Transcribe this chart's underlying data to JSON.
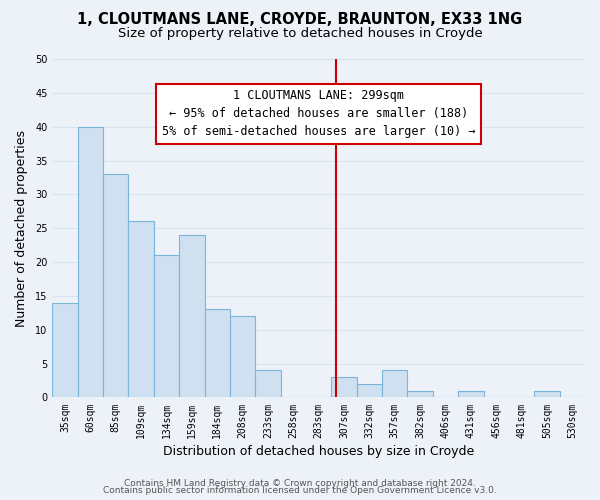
{
  "title1": "1, CLOUTMANS LANE, CROYDE, BRAUNTON, EX33 1NG",
  "title2": "Size of property relative to detached houses in Croyde",
  "xlabel": "Distribution of detached houses by size in Croyde",
  "ylabel": "Number of detached properties",
  "bar_color": "#cfe0f0",
  "bar_edge_color": "#7ab4d8",
  "categories": [
    "35sqm",
    "60sqm",
    "85sqm",
    "109sqm",
    "134sqm",
    "159sqm",
    "184sqm",
    "208sqm",
    "233sqm",
    "258sqm",
    "283sqm",
    "307sqm",
    "332sqm",
    "357sqm",
    "382sqm",
    "406sqm",
    "431sqm",
    "456sqm",
    "481sqm",
    "505sqm",
    "530sqm"
  ],
  "values": [
    14,
    40,
    33,
    26,
    21,
    24,
    13,
    12,
    4,
    0,
    0,
    3,
    2,
    4,
    1,
    0,
    1,
    0,
    0,
    1,
    0
  ],
  "ylim": [
    0,
    50
  ],
  "yticks": [
    0,
    5,
    10,
    15,
    20,
    25,
    30,
    35,
    40,
    45,
    50
  ],
  "vline_color": "#cc0000",
  "annotation_title": "1 CLOUTMANS LANE: 299sqm",
  "annotation_line1": "← 95% of detached houses are smaller (188)",
  "annotation_line2": "5% of semi-detached houses are larger (10) →",
  "footer1": "Contains HM Land Registry data © Crown copyright and database right 2024.",
  "footer2": "Contains public sector information licensed under the Open Government Licence v3.0.",
  "background_color": "#edf2f9",
  "grid_color": "#d8e4f0",
  "title_fontsize": 10.5,
  "subtitle_fontsize": 9.5,
  "axis_label_fontsize": 9,
  "tick_fontsize": 7,
  "footer_fontsize": 6.5,
  "ann_fontsize": 8.5
}
